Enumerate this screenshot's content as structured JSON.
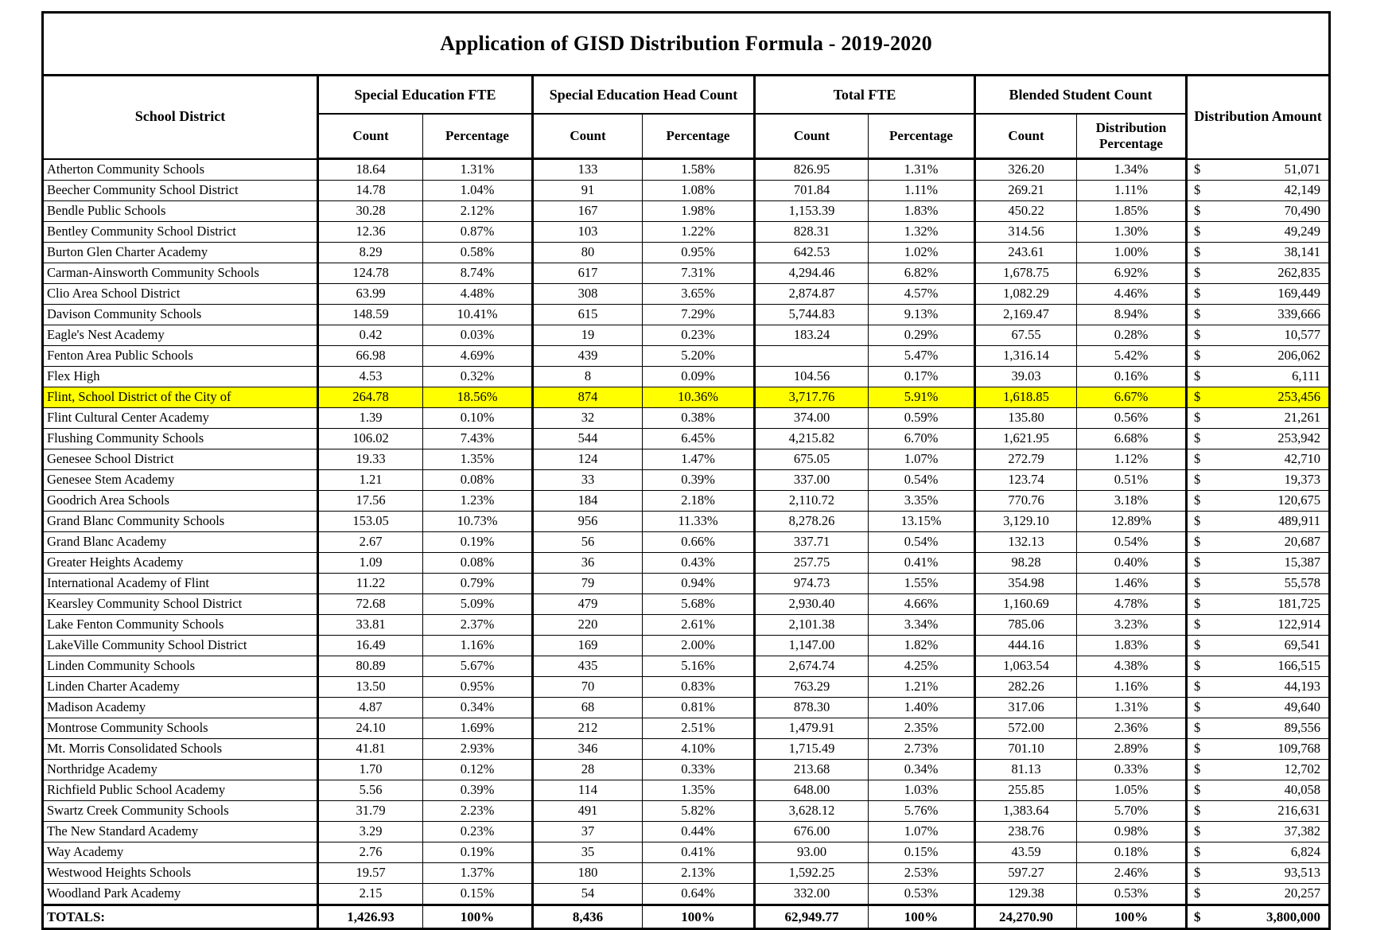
{
  "title": "Application of GISD Distribution Formula - 2019-2020",
  "table": {
    "school_district_header": "School District",
    "groups": [
      {
        "label": "Special Education FTE",
        "sub": [
          "Count",
          "Percentage"
        ]
      },
      {
        "label": "Special Education Head Count",
        "sub": [
          "Count",
          "Percentage"
        ]
      },
      {
        "label": "Total FTE",
        "sub": [
          "Count",
          "Percentage"
        ]
      },
      {
        "label": "Blended Student Count",
        "sub": [
          "Count",
          "Distribution Percentage"
        ]
      }
    ],
    "distribution_amount_header": "Distribution Amount",
    "currency_symbol": "$",
    "highlight_color": "#FFFF00",
    "highlight_row_index": 11,
    "rows": [
      [
        "Atherton Community Schools",
        "18.64",
        "1.31%",
        "133",
        "1.58%",
        "826.95",
        "1.31%",
        "326.20",
        "1.34%",
        "51,071"
      ],
      [
        "Beecher Community School District",
        "14.78",
        "1.04%",
        "91",
        "1.08%",
        "701.84",
        "1.11%",
        "269.21",
        "1.11%",
        "42,149"
      ],
      [
        "Bendle Public Schools",
        "30.28",
        "2.12%",
        "167",
        "1.98%",
        "1,153.39",
        "1.83%",
        "450.22",
        "1.85%",
        "70,490"
      ],
      [
        "Bentley Community School District",
        "12.36",
        "0.87%",
        "103",
        "1.22%",
        "828.31",
        "1.32%",
        "314.56",
        "1.30%",
        "49,249"
      ],
      [
        "Burton Glen Charter Academy",
        "8.29",
        "0.58%",
        "80",
        "0.95%",
        "642.53",
        "1.02%",
        "243.61",
        "1.00%",
        "38,141"
      ],
      [
        "Carman-Ainsworth Community Schools",
        "124.78",
        "8.74%",
        "617",
        "7.31%",
        "4,294.46",
        "6.82%",
        "1,678.75",
        "6.92%",
        "262,835"
      ],
      [
        "Clio Area School District",
        "63.99",
        "4.48%",
        "308",
        "3.65%",
        "2,874.87",
        "4.57%",
        "1,082.29",
        "4.46%",
        "169,449"
      ],
      [
        "Davison Community Schools",
        "148.59",
        "10.41%",
        "615",
        "7.29%",
        "5,744.83",
        "9.13%",
        "2,169.47",
        "8.94%",
        "339,666"
      ],
      [
        "Eagle's Nest Academy",
        "0.42",
        "0.03%",
        "19",
        "0.23%",
        "183.24",
        "0.29%",
        "67.55",
        "0.28%",
        "10,577"
      ],
      [
        "Fenton Area Public Schools",
        "66.98",
        "4.69%",
        "439",
        "5.20%",
        "",
        "5.47%",
        "1,316.14",
        "5.42%",
        "206,062"
      ],
      [
        "Flex High",
        "4.53",
        "0.32%",
        "8",
        "0.09%",
        "104.56",
        "0.17%",
        "39.03",
        "0.16%",
        "6,111"
      ],
      [
        "Flint, School District of the City of",
        "264.78",
        "18.56%",
        "874",
        "10.36%",
        "3,717.76",
        "5.91%",
        "1,618.85",
        "6.67%",
        "253,456"
      ],
      [
        "Flint Cultural Center Academy",
        "1.39",
        "0.10%",
        "32",
        "0.38%",
        "374.00",
        "0.59%",
        "135.80",
        "0.56%",
        "21,261"
      ],
      [
        "Flushing Community Schools",
        "106.02",
        "7.43%",
        "544",
        "6.45%",
        "4,215.82",
        "6.70%",
        "1,621.95",
        "6.68%",
        "253,942"
      ],
      [
        "Genesee School District",
        "19.33",
        "1.35%",
        "124",
        "1.47%",
        "675.05",
        "1.07%",
        "272.79",
        "1.12%",
        "42,710"
      ],
      [
        "Genesee Stem Academy",
        "1.21",
        "0.08%",
        "33",
        "0.39%",
        "337.00",
        "0.54%",
        "123.74",
        "0.51%",
        "19,373"
      ],
      [
        "Goodrich Area Schools",
        "17.56",
        "1.23%",
        "184",
        "2.18%",
        "2,110.72",
        "3.35%",
        "770.76",
        "3.18%",
        "120,675"
      ],
      [
        "Grand Blanc Community Schools",
        "153.05",
        "10.73%",
        "956",
        "11.33%",
        "8,278.26",
        "13.15%",
        "3,129.10",
        "12.89%",
        "489,911"
      ],
      [
        "Grand Blanc Academy",
        "2.67",
        "0.19%",
        "56",
        "0.66%",
        "337.71",
        "0.54%",
        "132.13",
        "0.54%",
        "20,687"
      ],
      [
        "Greater Heights Academy",
        "1.09",
        "0.08%",
        "36",
        "0.43%",
        "257.75",
        "0.41%",
        "98.28",
        "0.40%",
        "15,387"
      ],
      [
        "International Academy of Flint",
        "11.22",
        "0.79%",
        "79",
        "0.94%",
        "974.73",
        "1.55%",
        "354.98",
        "1.46%",
        "55,578"
      ],
      [
        "Kearsley Community School District",
        "72.68",
        "5.09%",
        "479",
        "5.68%",
        "2,930.40",
        "4.66%",
        "1,160.69",
        "4.78%",
        "181,725"
      ],
      [
        "Lake Fenton Community Schools",
        "33.81",
        "2.37%",
        "220",
        "2.61%",
        "2,101.38",
        "3.34%",
        "785.06",
        "3.23%",
        "122,914"
      ],
      [
        "LakeVille Community School District",
        "16.49",
        "1.16%",
        "169",
        "2.00%",
        "1,147.00",
        "1.82%",
        "444.16",
        "1.83%",
        "69,541"
      ],
      [
        "Linden Community Schools",
        "80.89",
        "5.67%",
        "435",
        "5.16%",
        "2,674.74",
        "4.25%",
        "1,063.54",
        "4.38%",
        "166,515"
      ],
      [
        "Linden Charter Academy",
        "13.50",
        "0.95%",
        "70",
        "0.83%",
        "763.29",
        "1.21%",
        "282.26",
        "1.16%",
        "44,193"
      ],
      [
        "Madison Academy",
        "4.87",
        "0.34%",
        "68",
        "0.81%",
        "878.30",
        "1.40%",
        "317.06",
        "1.31%",
        "49,640"
      ],
      [
        "Montrose Community Schools",
        "24.10",
        "1.69%",
        "212",
        "2.51%",
        "1,479.91",
        "2.35%",
        "572.00",
        "2.36%",
        "89,556"
      ],
      [
        "Mt. Morris Consolidated Schools",
        "41.81",
        "2.93%",
        "346",
        "4.10%",
        "1,715.49",
        "2.73%",
        "701.10",
        "2.89%",
        "109,768"
      ],
      [
        "Northridge Academy",
        "1.70",
        "0.12%",
        "28",
        "0.33%",
        "213.68",
        "0.34%",
        "81.13",
        "0.33%",
        "12,702"
      ],
      [
        "Richfield Public School Academy",
        "5.56",
        "0.39%",
        "114",
        "1.35%",
        "648.00",
        "1.03%",
        "255.85",
        "1.05%",
        "40,058"
      ],
      [
        "Swartz Creek Community Schools",
        "31.79",
        "2.23%",
        "491",
        "5.82%",
        "3,628.12",
        "5.76%",
        "1,383.64",
        "5.70%",
        "216,631"
      ],
      [
        "The New Standard Academy",
        "3.29",
        "0.23%",
        "37",
        "0.44%",
        "676.00",
        "1.07%",
        "238.76",
        "0.98%",
        "37,382"
      ],
      [
        "Way Academy",
        "2.76",
        "0.19%",
        "35",
        "0.41%",
        "93.00",
        "0.15%",
        "43.59",
        "0.18%",
        "6,824"
      ],
      [
        "Westwood Heights Schools",
        "19.57",
        "1.37%",
        "180",
        "2.13%",
        "1,592.25",
        "2.53%",
        "597.27",
        "2.46%",
        "93,513"
      ],
      [
        "Woodland Park Academy",
        "2.15",
        "0.15%",
        "54",
        "0.64%",
        "332.00",
        "0.53%",
        "129.38",
        "0.53%",
        "20,257"
      ]
    ],
    "totals": [
      "TOTALS:",
      "1,426.93",
      "100%",
      "8,436",
      "100%",
      "62,949.77",
      "100%",
      "24,270.90",
      "100%",
      "3,800,000"
    ]
  }
}
